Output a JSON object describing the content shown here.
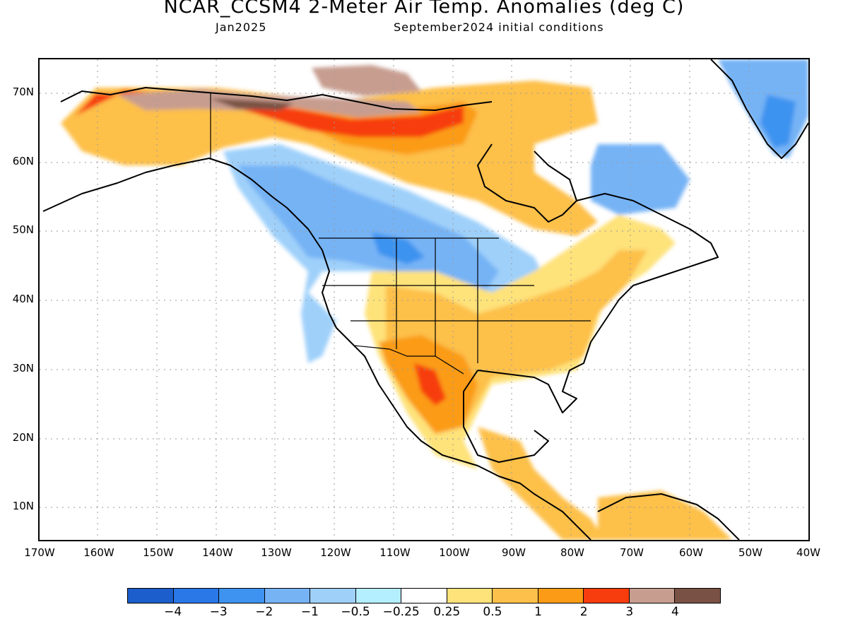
{
  "header": {
    "title": "NCAR_CCSM4 2-Meter Air Temp. Anomalies (deg C)",
    "subtitle_left": "Jan2025",
    "subtitle_right": "September2024 initial conditions"
  },
  "map": {
    "region": "North America",
    "lat_labels": [
      "70N",
      "60N",
      "50N",
      "40N",
      "30N",
      "20N",
      "10N"
    ],
    "lon_labels": [
      "170W",
      "160W",
      "150W",
      "140W",
      "130W",
      "120W",
      "110W",
      "100W",
      "90W",
      "80W",
      "70W",
      "60W",
      "50W",
      "40W"
    ],
    "lat_range": [
      5,
      75
    ],
    "lon_range": [
      -170,
      -40
    ],
    "grid": "dotted"
  },
  "colorbar": {
    "colors": [
      "#1c5ecb",
      "#2a78e8",
      "#3e93f0",
      "#76b3f5",
      "#9fd0fa",
      "#b3efff",
      "#ffffff",
      "#fee27a",
      "#fdc04a",
      "#fb9b16",
      "#f73c0e",
      "#c79d90",
      "#7a5245"
    ],
    "labels": [
      "−4",
      "−3",
      "−2",
      "−1",
      "−0.5",
      "−0.25",
      "0.25",
      "0.5",
      "1",
      "2",
      "3",
      "4"
    ]
  }
}
